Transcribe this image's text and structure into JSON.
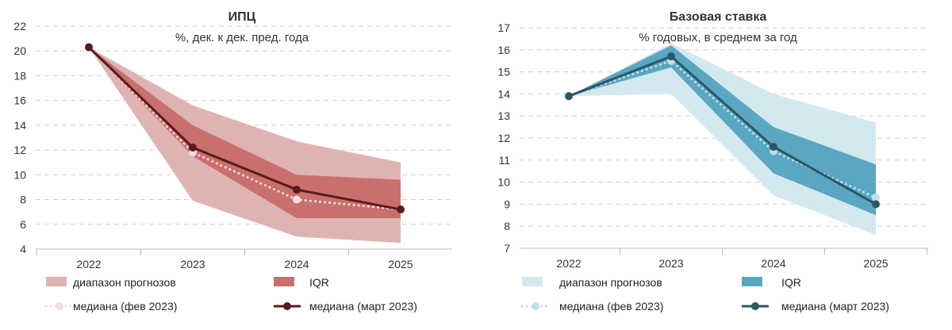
{
  "chart_data": [
    {
      "type": "line",
      "title": "ИПЦ",
      "subtitle": "%, дек. к дек. пред. года",
      "categories": [
        "2022",
        "2023",
        "2024",
        "2025"
      ],
      "ylim": [
        4,
        22
      ],
      "yticks": [
        "4",
        "6",
        "8",
        "10",
        "12",
        "14",
        "16",
        "18",
        "20",
        "22"
      ],
      "series": [
        {
          "name": "диапазон прогнозов",
          "kind": "band",
          "low": [
            20.3,
            7.9,
            5.0,
            4.5
          ],
          "high": [
            20.3,
            15.6,
            12.7,
            11.0
          ],
          "color": "#e0b3b3"
        },
        {
          "name": "IQR",
          "kind": "band",
          "low": [
            20.3,
            11.5,
            6.5,
            6.5
          ],
          "high": [
            20.3,
            14.0,
            10.0,
            9.6
          ],
          "color": "#c9706e"
        },
        {
          "name": "медиана (фев 2023)",
          "kind": "dotted",
          "values": [
            20.3,
            11.8,
            8.0,
            7.2
          ],
          "color": "#f3dede"
        },
        {
          "name": "медиана (март 2023)",
          "kind": "line",
          "values": [
            20.3,
            12.2,
            8.8,
            7.2
          ],
          "color": "#5a1a1c"
        }
      ]
    },
    {
      "type": "line",
      "title": "Базовая ставка",
      "subtitle": "% годовых, в среднем за год",
      "categories": [
        "2022",
        "2023",
        "2024",
        "2025"
      ],
      "ylim": [
        7,
        17
      ],
      "yticks": [
        "7",
        "8",
        "9",
        "10",
        "11",
        "12",
        "13",
        "14",
        "15",
        "16",
        "17"
      ],
      "series": [
        {
          "name": "диапазон прогнозов",
          "kind": "band",
          "low": [
            13.9,
            14.0,
            9.4,
            7.6
          ],
          "high": [
            13.9,
            16.3,
            14.0,
            12.7
          ],
          "color": "#d3e9ef"
        },
        {
          "name": "IQR",
          "kind": "band",
          "low": [
            13.9,
            15.2,
            10.4,
            8.5
          ],
          "high": [
            13.9,
            16.2,
            12.5,
            10.8
          ],
          "color": "#5aa7c2"
        },
        {
          "name": "медиана (фев 2023)",
          "kind": "dotted",
          "values": [
            13.9,
            15.5,
            11.4,
            9.3
          ],
          "color": "#bfe0ea"
        },
        {
          "name": "медиана (март 2023)",
          "kind": "line",
          "values": [
            13.9,
            15.7,
            11.6,
            9.0
          ],
          "color": "#2e5566"
        }
      ]
    }
  ]
}
